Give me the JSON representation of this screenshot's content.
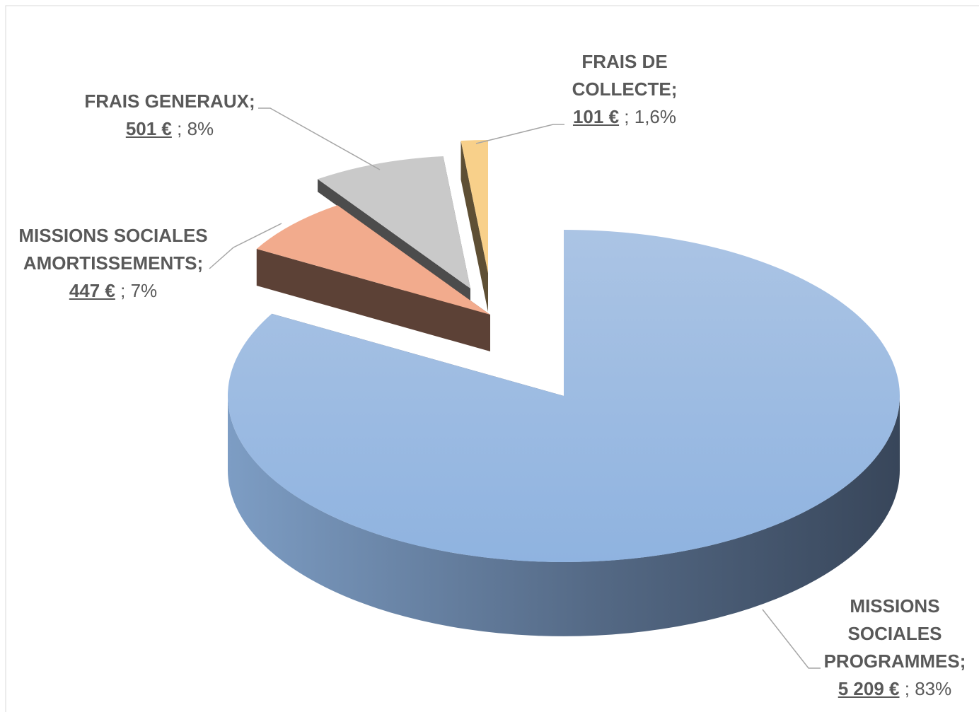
{
  "chart_data": {
    "type": "pie",
    "categories": [
      "MISSIONS SOCIALES PROGRAMMES",
      "MISSIONS SOCIALES AMORTISSEMENTS",
      "FRAIS GENERAUX",
      "FRAIS DE COLLECTE"
    ],
    "values": [
      5209,
      447,
      501,
      101
    ],
    "value_labels": [
      "5 209 €",
      "447 €",
      "501 €",
      "101 €"
    ],
    "percents": [
      83,
      7,
      8,
      1.6
    ],
    "percent_labels": [
      "83%",
      "7%",
      "8%",
      "1,6%"
    ],
    "separator": ";",
    "colors": [
      "#9dbbe1",
      "#f2ab8d",
      "#c9c9c9",
      "#f8d08a"
    ]
  }
}
